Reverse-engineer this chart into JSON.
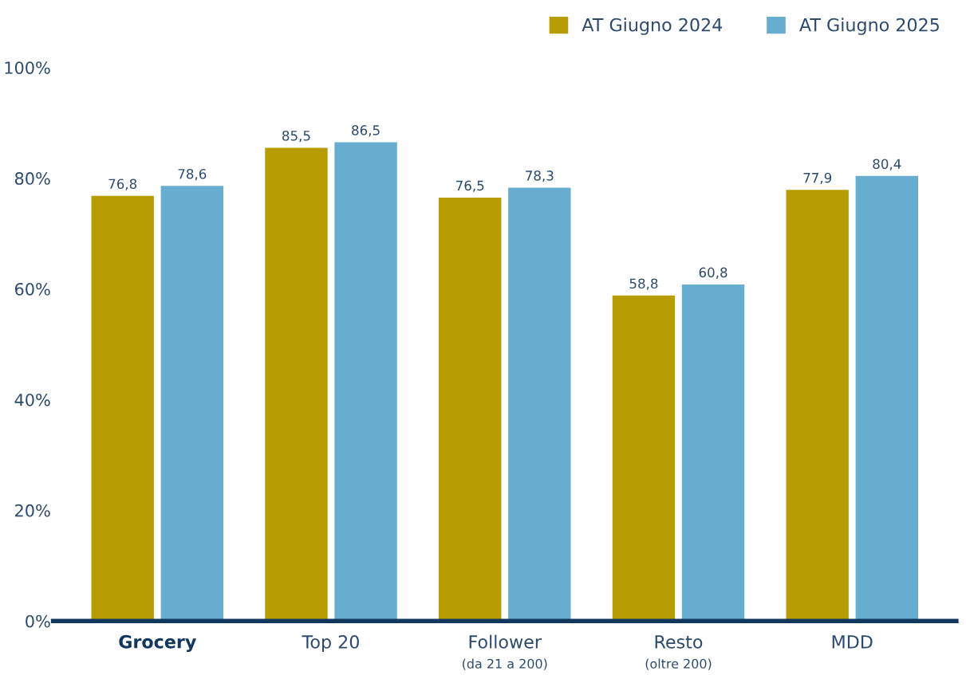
{
  "chart_data": {
    "type": "bar",
    "categories": [
      "Grocery",
      "Top 20",
      "Follower\n(da 21 a 200)",
      "Resto\n(oltre 200)",
      "MDD"
    ],
    "series": [
      {
        "name": "AT Giugno 2024",
        "color": "#b89c03",
        "values": [
          76.8,
          85.5,
          76.5,
          58.8,
          77.9
        ],
        "value_labels": [
          "76,8",
          "85,5",
          "76,5",
          "58,8",
          "77,9"
        ]
      },
      {
        "name": "AT Giugno 2025",
        "color": "#67adcf",
        "values": [
          78.6,
          86.5,
          78.3,
          60.8,
          80.4
        ],
        "value_labels": [
          "78,6",
          "86,5",
          "78,3",
          "60,8",
          "80,4"
        ]
      }
    ],
    "ylim": [
      0,
      100
    ],
    "yticks": [
      {
        "value": 0,
        "label": "0%"
      },
      {
        "value": 20,
        "label": "20%"
      },
      {
        "value": 40,
        "label": "40%"
      },
      {
        "value": 60,
        "label": "60%"
      },
      {
        "value": 80,
        "label": "80%"
      },
      {
        "value": 100,
        "label": "100%"
      }
    ],
    "grid": false,
    "legend": "top right"
  }
}
